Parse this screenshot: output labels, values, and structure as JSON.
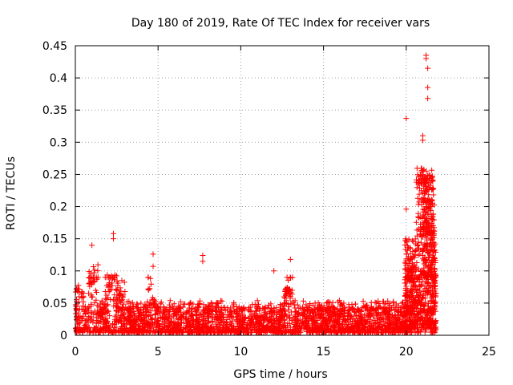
{
  "chart_data": {
    "type": "scatter",
    "title": "Day 180 of 2019, Rate Of TEC Index for receiver vars",
    "xlabel": "GPS time / hours",
    "ylabel": "ROTI / TECUs",
    "xlim": [
      0,
      25
    ],
    "ylim": [
      0,
      0.45
    ],
    "xticks": [
      "0",
      "5",
      "10",
      "15",
      "20",
      "25"
    ],
    "yticks": [
      "0",
      "0.05",
      "0.1",
      "0.15",
      "0.2",
      "0.25",
      "0.3",
      "0.35",
      "0.4",
      "0.45"
    ],
    "grid": true,
    "marker": "+",
    "color": "#ff0000",
    "series": [
      {
        "name": "ROTI",
        "notable_points": [
          {
            "x": 1.0,
            "y": 0.14
          },
          {
            "x": 2.3,
            "y": 0.158
          },
          {
            "x": 2.3,
            "y": 0.15
          },
          {
            "x": 4.7,
            "y": 0.126
          },
          {
            "x": 4.7,
            "y": 0.107
          },
          {
            "x": 7.7,
            "y": 0.124
          },
          {
            "x": 7.7,
            "y": 0.115
          },
          {
            "x": 12.0,
            "y": 0.1
          },
          {
            "x": 13.0,
            "y": 0.118
          },
          {
            "x": 20.0,
            "y": 0.337
          },
          {
            "x": 21.0,
            "y": 0.31
          },
          {
            "x": 21.0,
            "y": 0.303
          },
          {
            "x": 21.2,
            "y": 0.435
          },
          {
            "x": 21.2,
            "y": 0.43
          },
          {
            "x": 21.3,
            "y": 0.415
          },
          {
            "x": 21.3,
            "y": 0.385
          },
          {
            "x": 21.3,
            "y": 0.368
          },
          {
            "x": 21.0,
            "y": 0.256
          },
          {
            "x": 21.3,
            "y": 0.248
          },
          {
            "x": 20.8,
            "y": 0.24
          },
          {
            "x": 21.4,
            "y": 0.23
          },
          {
            "x": 21.1,
            "y": 0.22
          },
          {
            "x": 21.5,
            "y": 0.2
          },
          {
            "x": 20.0,
            "y": 0.196
          },
          {
            "x": 21.6,
            "y": 0.18
          },
          {
            "x": 21.6,
            "y": 0.16
          }
        ]
      }
    ]
  }
}
